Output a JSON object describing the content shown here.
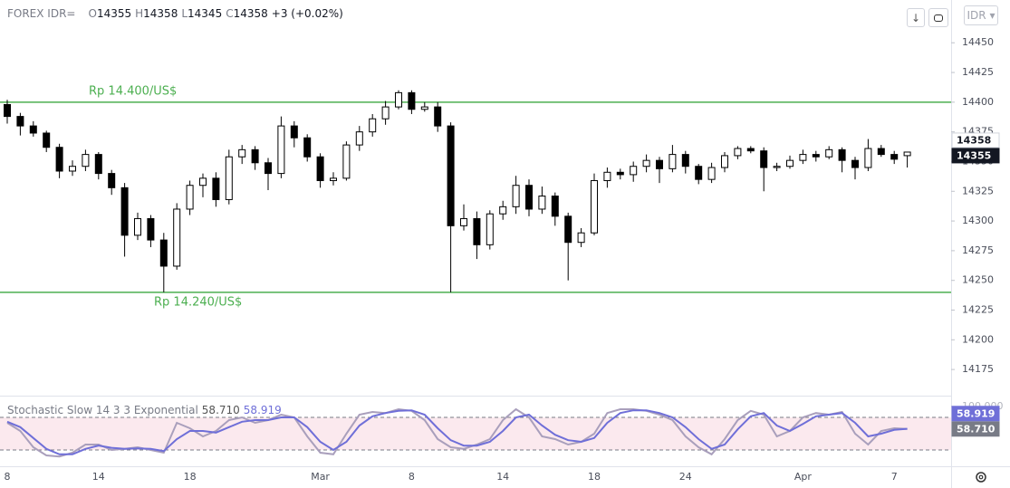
{
  "chart_data": [
    {
      "type": "candlestick",
      "title": "FOREX IDR=",
      "ohlc_header": [
        {
          "label": "O",
          "value": 14355
        },
        {
          "label": "H",
          "value": 14358
        },
        {
          "label": "L",
          "value": 14345
        },
        {
          "label": "C",
          "value": 14358
        }
      ],
      "change_text": "+3 (+0.02%)",
      "currency": "IDR",
      "x": [
        "8",
        null,
        null,
        null,
        null,
        null,
        null,
        "14",
        null,
        null,
        null,
        null,
        null,
        null,
        "18",
        null,
        null,
        null,
        null,
        null,
        null,
        null,
        null,
        null,
        "Mar",
        null,
        null,
        null,
        null,
        null,
        null,
        "8",
        null,
        null,
        null,
        null,
        null,
        null,
        "14",
        null,
        null,
        null,
        null,
        null,
        null,
        "18",
        null,
        null,
        null,
        null,
        null,
        null,
        "24",
        null,
        null,
        null,
        null,
        null,
        null,
        null,
        null,
        "Apr",
        null,
        null,
        null,
        null,
        null,
        null,
        "7",
        null
      ],
      "open": [
        14398,
        14388,
        14380,
        14374,
        14362,
        14342,
        14346,
        14356,
        14340,
        14328,
        14288,
        14302,
        14284,
        14262,
        14310,
        14330,
        14336,
        14318,
        14354,
        14360,
        14349,
        14340,
        14380,
        14370,
        14354,
        14334,
        14336,
        14364,
        14375,
        14386,
        14396,
        14408,
        14394,
        14396,
        14380,
        14296,
        14302,
        14280,
        14306,
        14312,
        14330,
        14310,
        14321,
        14304,
        14282,
        14290,
        14334,
        14341,
        14339,
        14346,
        14351,
        14344,
        14356,
        14346,
        14335,
        14345,
        14355,
        14361,
        14359,
        14345,
        14346,
        14351,
        14356,
        14354,
        14360,
        14351,
        14345,
        14361,
        14356,
        14355
      ],
      "high": [
        14402,
        14391,
        14384,
        14376,
        14365,
        14351,
        14360,
        14358,
        14343,
        14332,
        14307,
        14305,
        14290,
        14315,
        14334,
        14340,
        14341,
        14360,
        14364,
        14363,
        14353,
        14388,
        14384,
        14373,
        14357,
        14341,
        14367,
        14380,
        14390,
        14401,
        14410,
        14410,
        14400,
        14400,
        14383,
        14314,
        14308,
        14309,
        14317,
        14338,
        14335,
        14329,
        14324,
        14307,
        14294,
        14340,
        14345,
        14344,
        14350,
        14356,
        14354,
        14364,
        14359,
        14348,
        14349,
        14358,
        14363,
        14363,
        14362,
        14349,
        14355,
        14360,
        14359,
        14363,
        14362,
        14354,
        14369,
        14364,
        14359,
        14358
      ],
      "low": [
        14382,
        14372,
        14371,
        14358,
        14336,
        14338,
        14342,
        14335,
        14322,
        14270,
        14284,
        14278,
        14240,
        14259,
        14305,
        14320,
        14312,
        14314,
        14348,
        14343,
        14326,
        14336,
        14362,
        14350,
        14328,
        14330,
        14334,
        14359,
        14371,
        14381,
        14394,
        14390,
        14392,
        14375,
        14240,
        14292,
        14268,
        14276,
        14301,
        14306,
        14304,
        14306,
        14296,
        14250,
        14278,
        14288,
        14328,
        14335,
        14333,
        14341,
        14332,
        14341,
        14340,
        14331,
        14332,
        14341,
        14352,
        14357,
        14325,
        14342,
        14344,
        14348,
        14350,
        14352,
        14341,
        14335,
        14342,
        14354,
        14348,
        14345
      ],
      "close": [
        14388,
        14380,
        14374,
        14362,
        14342,
        14346,
        14356,
        14340,
        14328,
        14288,
        14302,
        14284,
        14262,
        14310,
        14330,
        14336,
        14318,
        14354,
        14360,
        14349,
        14340,
        14380,
        14370,
        14354,
        14334,
        14336,
        14364,
        14375,
        14386,
        14396,
        14408,
        14394,
        14396,
        14380,
        14296,
        14302,
        14280,
        14306,
        14312,
        14330,
        14310,
        14321,
        14304,
        14282,
        14290,
        14334,
        14341,
        14339,
        14346,
        14351,
        14344,
        14356,
        14346,
        14335,
        14345,
        14355,
        14361,
        14359,
        14345,
        14346,
        14351,
        14356,
        14354,
        14360,
        14351,
        14345,
        14361,
        14356,
        14352,
        14358
      ],
      "up_color": "#ffffff",
      "down_color": "#000000",
      "wick_color": "#000000",
      "ylim": [
        14153,
        14486
      ],
      "yticks": [
        14175,
        14200,
        14225,
        14250,
        14275,
        14300,
        14325,
        14350,
        14375,
        14400,
        14425,
        14450
      ],
      "grid": false,
      "hlines": [
        {
          "value": 14400,
          "label": "Rp 14.400/US$",
          "color": "#4caf50"
        },
        {
          "value": 14240,
          "label": "Rp 14.240/US$",
          "color": "#4caf50"
        }
      ],
      "axis_badges": [
        {
          "value": 14358,
          "color": "#ffffff",
          "text_color": "#131722"
        },
        {
          "value": 14355,
          "color": "#131722",
          "text_color": "#ffffff"
        }
      ]
    },
    {
      "type": "line",
      "title": "Stochastic Slow 14 3 3 Exponential",
      "ylim": [
        -10,
        120
      ],
      "yticks": [
        {
          "value": 100,
          "label": "100.000"
        }
      ],
      "band": [
        20,
        80
      ],
      "band_color": "#fbe9ee",
      "series": [
        {
          "color": "#a99fbc",
          "last_label": "58.710",
          "values": [
            70,
            55,
            25,
            10,
            8,
            15,
            30,
            30,
            20,
            22,
            25,
            20,
            15,
            70,
            60,
            45,
            55,
            75,
            80,
            70,
            75,
            85,
            80,
            45,
            15,
            12,
            50,
            85,
            90,
            88,
            95,
            92,
            75,
            40,
            25,
            22,
            30,
            40,
            75,
            95,
            80,
            45,
            40,
            30,
            35,
            50,
            88,
            95,
            95,
            92,
            85,
            75,
            45,
            25,
            12,
            40,
            75,
            92,
            85,
            45,
            55,
            80,
            88,
            85,
            90,
            50,
            30,
            55,
            60,
            58.71
          ]
        },
        {
          "color": "#6f6fd8",
          "last_label": "58.919",
          "values": [
            72,
            62,
            42,
            22,
            12,
            12,
            22,
            28,
            24,
            22,
            23,
            22,
            18,
            40,
            55,
            55,
            52,
            62,
            72,
            75,
            75,
            80,
            80,
            62,
            35,
            20,
            35,
            65,
            82,
            88,
            92,
            93,
            85,
            60,
            38,
            28,
            28,
            35,
            55,
            80,
            85,
            65,
            48,
            38,
            35,
            42,
            70,
            88,
            93,
            93,
            88,
            80,
            62,
            40,
            22,
            30,
            58,
            82,
            88,
            65,
            55,
            68,
            82,
            85,
            88,
            70,
            45,
            50,
            57,
            58.919
          ]
        }
      ]
    }
  ]
}
